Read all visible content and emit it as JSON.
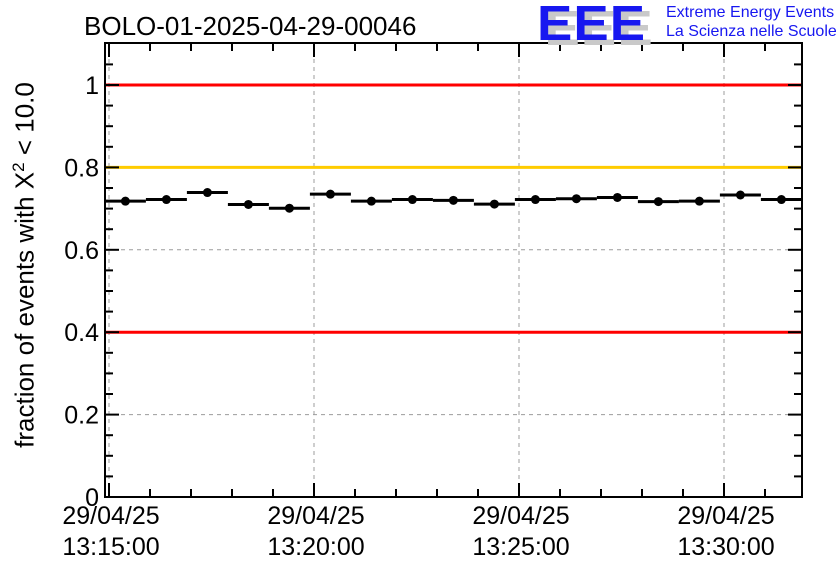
{
  "title": "BOLO-01-2025-04-29-00046",
  "logo": {
    "letters": "EEE",
    "line1": "Extreme Energy Events",
    "line2": "La Scienza nelle Scuole",
    "color": "#1717f0"
  },
  "y_axis_title": {
    "prefix": "fraction of events with X",
    "sup": "2",
    "suffix": " < 10.0"
  },
  "chart_data": {
    "type": "scatter",
    "title": "BOLO-01-2025-04-29-00046",
    "ylabel": "fraction of events with X^2 < 10.0",
    "xlabel": "",
    "legend": false,
    "grid": true,
    "marker": "filled-circle",
    "ylim": [
      0,
      1.1
    ],
    "x_unit": "minutes after 29/04/25 13:15:00",
    "xlim_minutes": [
      -0.1,
      16.9
    ],
    "x": [
      0.4,
      1.4,
      2.4,
      3.4,
      4.4,
      5.4,
      6.4,
      7.4,
      8.4,
      9.4,
      10.4,
      11.4,
      12.4,
      13.4,
      14.4,
      15.4,
      16.4
    ],
    "y": [
      0.718,
      0.722,
      0.739,
      0.71,
      0.701,
      0.735,
      0.718,
      0.722,
      0.72,
      0.711,
      0.722,
      0.724,
      0.727,
      0.717,
      0.718,
      0.733,
      0.722
    ],
    "x_bin_half_width_minutes": 0.5,
    "x_ticks": [
      {
        "t": 0,
        "date": "29/04/25",
        "time": "13:15:00"
      },
      {
        "t": 5,
        "date": "29/04/25",
        "time": "13:20:00"
      },
      {
        "t": 10,
        "date": "29/04/25",
        "time": "13:25:00"
      },
      {
        "t": 15,
        "date": "29/04/25",
        "time": "13:30:00"
      }
    ],
    "y_ticks": [
      {
        "v": 0,
        "label": "0"
      },
      {
        "v": 0.2,
        "label": "0.2"
      },
      {
        "v": 0.4,
        "label": "0.4"
      },
      {
        "v": 0.6,
        "label": "0.6"
      },
      {
        "v": 0.8,
        "label": "0.8"
      },
      {
        "v": 1.0,
        "label": "1"
      }
    ],
    "reference_lines": [
      {
        "y": 1.0,
        "color": "#ff0000"
      },
      {
        "y": 0.8,
        "color": "#ffcc00"
      },
      {
        "y": 0.4,
        "color": "#ff0000"
      }
    ],
    "colors": {
      "marker": "#000000",
      "grid": "#9c9c9c",
      "frame": "#000000",
      "red_threshold": "#ff0000",
      "orange_threshold": "#ffcc00"
    }
  }
}
